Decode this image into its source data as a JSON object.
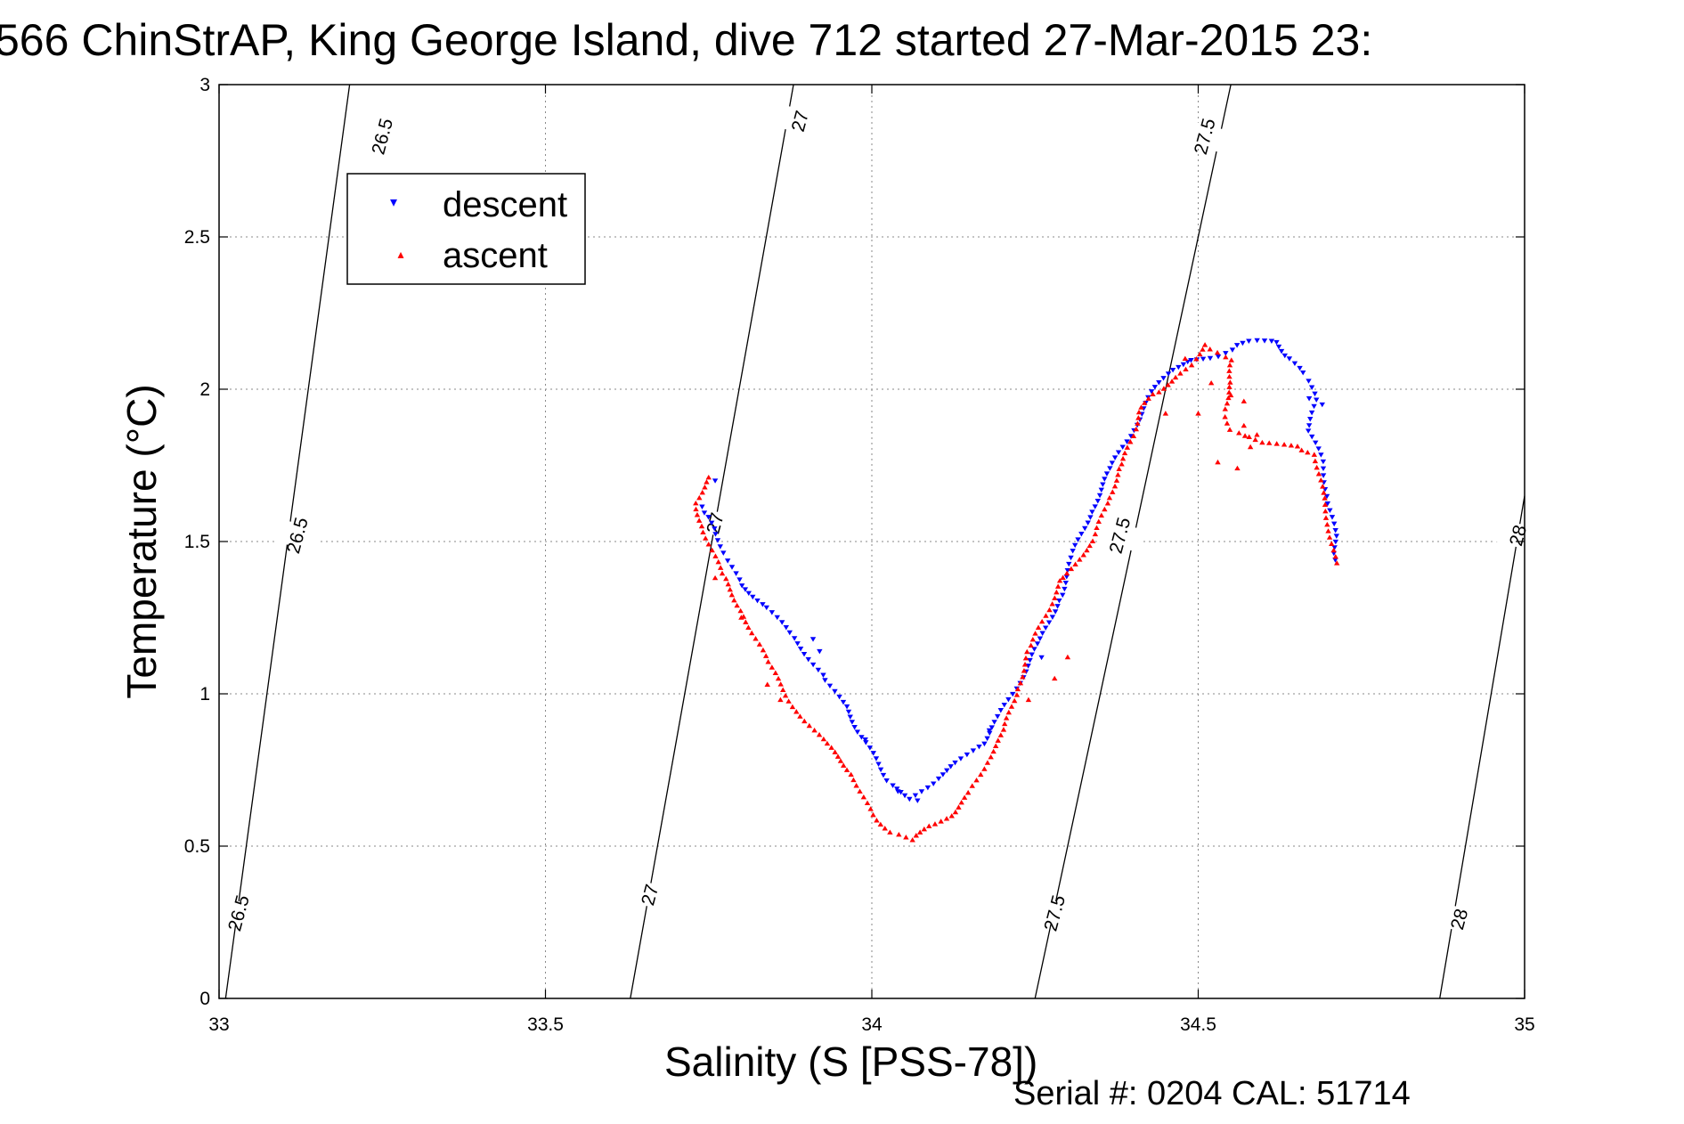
{
  "chart_data": {
    "type": "scatter",
    "title": "566 ChinStrAP, King George Island, dive 712 started 27-Mar-2015 23:",
    "xlabel": "Salinity (S [PSS-78])",
    "ylabel": "Temperature (°C)",
    "xlim": [
      33,
      35
    ],
    "ylim": [
      0,
      3
    ],
    "x_ticks": [
      "33",
      "33.5",
      "34",
      "34.5",
      "35"
    ],
    "y_ticks": [
      "0",
      "0.5",
      "1",
      "1.5",
      "2",
      "2.5",
      "3"
    ],
    "grid": true,
    "legend_position": "upper-left",
    "legend": [
      "descent",
      "ascent"
    ],
    "isopycnals": [
      {
        "label": "26.5",
        "points": [
          [
            33.01,
            0.0
          ],
          [
            33.2,
            3.0
          ]
        ]
      },
      {
        "label": "27",
        "points": [
          [
            33.63,
            0.0
          ],
          [
            33.88,
            3.0
          ]
        ]
      },
      {
        "label": "27.5",
        "points": [
          [
            34.25,
            0.0
          ],
          [
            34.55,
            3.0
          ]
        ]
      },
      {
        "label": "28",
        "points": [
          [
            34.87,
            0.0
          ],
          [
            35.0,
            1.65
          ]
        ]
      }
    ],
    "isopycnal_labels": [
      {
        "text": "26.5",
        "x": 33.25,
        "y": 2.83
      },
      {
        "text": "26.5",
        "x": 33.12,
        "y": 1.52
      },
      {
        "text": "26.5",
        "x": 33.03,
        "y": 0.28
      },
      {
        "text": "27",
        "x": 33.89,
        "y": 2.88
      },
      {
        "text": "27",
        "x": 33.76,
        "y": 1.56
      },
      {
        "text": "27",
        "x": 33.66,
        "y": 0.34
      },
      {
        "text": "27.5",
        "x": 34.51,
        "y": 2.83
      },
      {
        "text": "27.5",
        "x": 34.38,
        "y": 1.52
      },
      {
        "text": "27.5",
        "x": 34.28,
        "y": 0.28
      },
      {
        "text": "28",
        "x": 34.99,
        "y": 1.52
      },
      {
        "text": "28",
        "x": 34.9,
        "y": 0.26
      }
    ],
    "series": [
      {
        "name": "descent",
        "color": "#0000ff",
        "marker": "triangle-down",
        "path": [
          [
            33.74,
            1.62
          ],
          [
            33.75,
            1.58
          ],
          [
            33.76,
            1.52
          ],
          [
            33.78,
            1.44
          ],
          [
            33.8,
            1.36
          ],
          [
            33.84,
            1.28
          ],
          [
            33.88,
            1.18
          ],
          [
            33.93,
            1.05
          ],
          [
            33.96,
            0.96
          ],
          [
            33.98,
            0.87
          ],
          [
            34.03,
            0.7
          ],
          [
            34.06,
            0.66
          ],
          [
            34.1,
            0.72
          ],
          [
            34.13,
            0.77
          ],
          [
            34.17,
            0.84
          ],
          [
            34.2,
            0.95
          ],
          [
            34.23,
            1.05
          ],
          [
            34.26,
            1.18
          ],
          [
            34.29,
            1.33
          ],
          [
            34.31,
            1.47
          ],
          [
            34.34,
            1.61
          ],
          [
            34.37,
            1.76
          ],
          [
            34.4,
            1.87
          ],
          [
            34.43,
            1.99
          ],
          [
            34.46,
            2.06
          ],
          [
            34.49,
            2.1
          ],
          [
            34.53,
            2.11
          ],
          [
            34.56,
            2.14
          ],
          [
            34.59,
            2.16
          ],
          [
            34.62,
            2.16
          ],
          [
            34.64,
            2.1
          ],
          [
            34.66,
            2.05
          ],
          [
            34.67,
            2.03
          ],
          [
            34.68,
            1.97
          ],
          [
            34.67,
            1.86
          ],
          [
            34.69,
            1.76
          ],
          [
            34.7,
            1.63
          ],
          [
            34.71,
            1.52
          ],
          [
            34.71,
            1.44
          ]
        ],
        "scatter": [
          [
            33.76,
            1.7
          ],
          [
            33.91,
            1.18
          ],
          [
            33.92,
            1.14
          ],
          [
            33.99,
            0.85
          ],
          [
            34.04,
            0.68
          ],
          [
            34.07,
            0.65
          ],
          [
            34.18,
            0.88
          ],
          [
            34.26,
            1.12
          ],
          [
            34.67,
            1.97
          ],
          [
            34.69,
            1.95
          ]
        ]
      },
      {
        "name": "ascent",
        "color": "#ff0000",
        "marker": "triangle-up",
        "path": [
          [
            34.71,
            1.43
          ],
          [
            34.7,
            1.55
          ],
          [
            34.69,
            1.66
          ],
          [
            34.68,
            1.79
          ],
          [
            34.65,
            1.81
          ],
          [
            34.6,
            1.82
          ],
          [
            34.57,
            1.85
          ],
          [
            34.55,
            1.87
          ],
          [
            34.54,
            1.93
          ],
          [
            34.55,
            2.02
          ],
          [
            34.55,
            2.1
          ],
          [
            34.53,
            2.12
          ],
          [
            34.51,
            2.14
          ],
          [
            34.49,
            2.08
          ],
          [
            34.46,
            2.03
          ],
          [
            34.43,
            1.98
          ],
          [
            34.41,
            1.92
          ],
          [
            34.4,
            1.85
          ],
          [
            34.38,
            1.74
          ],
          [
            34.36,
            1.62
          ],
          [
            34.34,
            1.5
          ],
          [
            34.31,
            1.43
          ],
          [
            34.29,
            1.37
          ],
          [
            34.27,
            1.27
          ],
          [
            34.24,
            1.14
          ],
          [
            34.22,
            1.0
          ],
          [
            34.2,
            0.86
          ],
          [
            34.17,
            0.75
          ],
          [
            34.15,
            0.68
          ],
          [
            34.12,
            0.6
          ],
          [
            34.09,
            0.56
          ],
          [
            34.06,
            0.52
          ],
          [
            34.03,
            0.55
          ],
          [
            34.0,
            0.6
          ],
          [
            33.97,
            0.73
          ],
          [
            33.93,
            0.84
          ],
          [
            33.88,
            0.96
          ],
          [
            33.84,
            1.1
          ],
          [
            33.8,
            1.27
          ],
          [
            33.77,
            1.4
          ],
          [
            33.74,
            1.55
          ],
          [
            33.73,
            1.62
          ],
          [
            33.75,
            1.71
          ]
        ],
        "scatter": [
          [
            33.76,
            1.38
          ],
          [
            33.8,
            1.25
          ],
          [
            33.84,
            1.03
          ],
          [
            33.86,
            0.98
          ],
          [
            34.45,
            1.92
          ],
          [
            34.5,
            1.92
          ],
          [
            34.52,
            2.02
          ],
          [
            34.55,
            1.98
          ],
          [
            34.57,
            1.96
          ],
          [
            34.57,
            1.88
          ],
          [
            34.59,
            1.85
          ],
          [
            34.53,
            1.76
          ],
          [
            34.56,
            1.74
          ],
          [
            34.58,
            1.81
          ],
          [
            34.28,
            1.05
          ],
          [
            34.3,
            1.12
          ],
          [
            34.24,
            0.98
          ],
          [
            34.48,
            2.1
          ]
        ]
      }
    ]
  },
  "footer": {
    "serial_text": "Serial #: 0204  CAL: 51714"
  }
}
